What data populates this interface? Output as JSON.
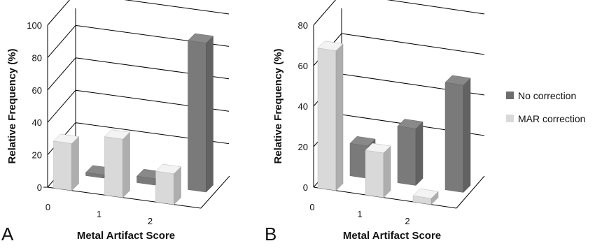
{
  "chart_data": [
    {
      "panel_label": "A",
      "type": "bar",
      "categories": [
        "0",
        "1",
        "2"
      ],
      "xlabel": "Metal Artifact Score",
      "ylabel": "Relative Frequency (%)",
      "ylim": [
        0,
        100
      ],
      "yticks": [
        "0",
        "20",
        "40",
        "60",
        "80",
        "100"
      ],
      "series": [
        {
          "name": "MAR correction",
          "values": [
            29,
            36,
            19
          ]
        },
        {
          "name": "No correction",
          "values": [
            2,
            4,
            92
          ]
        }
      ]
    },
    {
      "panel_label": "B",
      "type": "bar",
      "categories": [
        "0",
        "1",
        "2"
      ],
      "xlabel": "Metal Artifact Score",
      "ylabel": "Relative Frequency (%)",
      "ylim": [
        0,
        80
      ],
      "yticks": [
        "0",
        "20",
        "40",
        "60",
        "80"
      ],
      "series": [
        {
          "name": "MAR correction",
          "values": [
            69,
            22,
            3
          ]
        },
        {
          "name": "No correction",
          "values": [
            16,
            28,
            53
          ]
        }
      ]
    }
  ],
  "legend": {
    "placement": "right",
    "items": [
      {
        "label": "No correction",
        "color": "#6d6d6d"
      },
      {
        "label": "MAR correction",
        "color": "#d9d9d9"
      }
    ]
  },
  "colors": {
    "mar_front": "#d9d9d9",
    "nocorr_front": "#7a7a7a"
  }
}
